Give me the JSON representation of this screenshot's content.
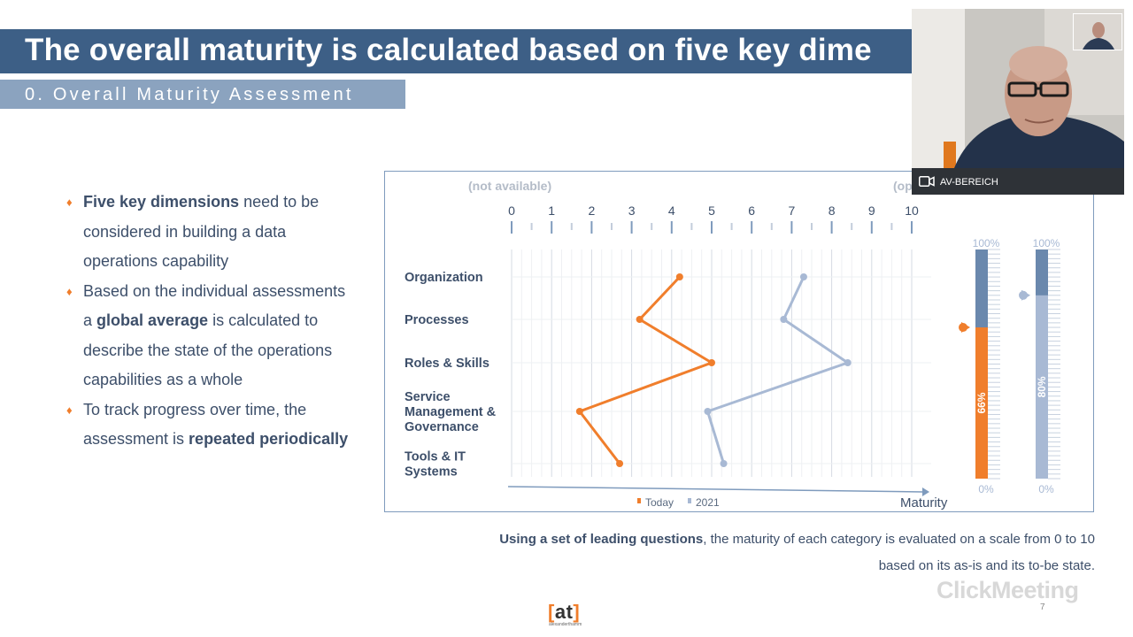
{
  "slide": {
    "title": "The overall maturity is calculated based on five key dime",
    "subtitle": "0. Overall Maturity Assessment",
    "bullets": [
      {
        "bold": "Five key dimensions",
        "text": " need to be considered in building a data operations capability"
      },
      {
        "pre": "Based on the individual assessments a ",
        "bold": "global average",
        "text": " is calculated to describe the state of the operations capabilities as a whole"
      },
      {
        "pre": "To track progress over time, the assessment is ",
        "bold": "repeated periodically",
        "text": ""
      }
    ],
    "caption_bold": "Using a set of leading questions",
    "caption_rest": ", the maturity of each category is evaluated on a scale from 0 to 10 based on its as-is and its to-be state.",
    "page_number": "7",
    "logo_text": "at",
    "logo_sub": "alexanderthamm"
  },
  "chart_data": {
    "type": "line",
    "top_left_label": "(not available)",
    "top_right_label": "(op",
    "x_ticks": [
      "0",
      "1",
      "2",
      "3",
      "4",
      "5",
      "6",
      "7",
      "8",
      "9",
      "10"
    ],
    "xlim": [
      0,
      10
    ],
    "xlabel": "Maturity",
    "categories": [
      "Organization",
      "Processes",
      "Roles & Skills",
      "Service Management & Governance",
      "Tools & IT Systems"
    ],
    "category_lines": [
      [
        "Organization"
      ],
      [
        "Processes"
      ],
      [
        "Roles & Skills"
      ],
      [
        "Service",
        "Management &",
        "Governance"
      ],
      [
        "Tools & IT",
        "Systems"
      ]
    ],
    "series": [
      {
        "name": "Today",
        "color": "#f07e2c",
        "values": [
          4.2,
          3.2,
          5.0,
          1.7,
          2.7
        ]
      },
      {
        "name": "2021",
        "color": "#a8b9d4",
        "values": [
          7.3,
          6.8,
          8.4,
          4.9,
          5.3
        ]
      }
    ],
    "gauges": [
      {
        "label": "66%",
        "value": 66,
        "top": "100%",
        "bottom": "0%",
        "fill_color": "#f07e2c",
        "marker_color": "#f07e2c"
      },
      {
        "label": "80%",
        "value": 80,
        "top": "100%",
        "bottom": "0%",
        "fill_color": "#a8b9d4",
        "marker_color": "#a8b9d4"
      }
    ]
  },
  "video": {
    "participant_name": "AV-BEREICH",
    "watermark": "ClickMeeting"
  }
}
